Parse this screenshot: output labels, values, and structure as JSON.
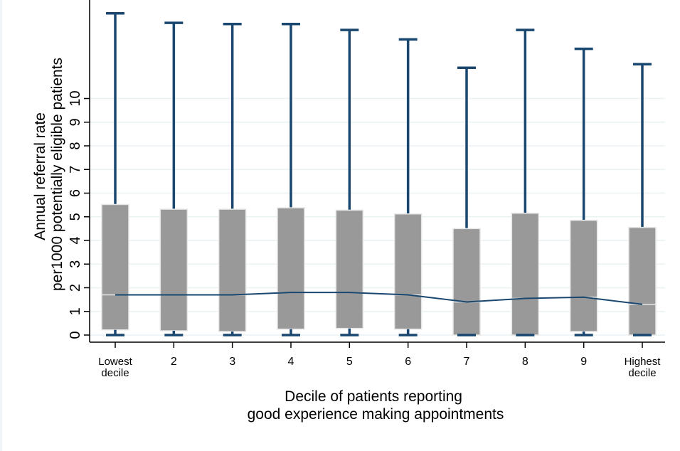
{
  "chart_data": {
    "type": "box",
    "categories": [
      "Lowest decile",
      "2",
      "3",
      "4",
      "5",
      "6",
      "7",
      "8",
      "9",
      "Highest decile"
    ],
    "category_lines": [
      [
        "Lowest",
        "decile"
      ],
      [
        "2"
      ],
      [
        "3"
      ],
      [
        "4"
      ],
      [
        "5"
      ],
      [
        "6"
      ],
      [
        "7"
      ],
      [
        "8"
      ],
      [
        "9"
      ],
      [
        "Highest",
        "decile"
      ]
    ],
    "boxes": [
      {
        "min": 0.0,
        "q1": 0.22,
        "median": 1.7,
        "q3": 5.52,
        "whisker_high": 13.6
      },
      {
        "min": 0.0,
        "q1": 0.18,
        "median": 1.7,
        "q3": 5.32,
        "whisker_high": 13.2
      },
      {
        "min": 0.0,
        "q1": 0.15,
        "median": 1.7,
        "q3": 5.32,
        "whisker_high": 13.15
      },
      {
        "min": 0.0,
        "q1": 0.25,
        "median": 1.8,
        "q3": 5.38,
        "whisker_high": 13.15
      },
      {
        "min": 0.0,
        "q1": 0.28,
        "median": 1.8,
        "q3": 5.28,
        "whisker_high": 12.9
      },
      {
        "min": 0.0,
        "q1": 0.25,
        "median": 1.7,
        "q3": 5.12,
        "whisker_high": 12.5
      },
      {
        "min": 0.0,
        "q1": 0.0,
        "median": 1.4,
        "q3": 4.5,
        "whisker_high": 11.3
      },
      {
        "min": 0.0,
        "q1": 0.0,
        "median": 1.55,
        "q3": 5.15,
        "whisker_high": 12.9
      },
      {
        "min": 0.0,
        "q1": 0.15,
        "median": 1.6,
        "q3": 4.85,
        "whisker_high": 12.1
      },
      {
        "min": 0.0,
        "q1": 0.0,
        "median": 1.3,
        "q3": 4.55,
        "whisker_high": 11.45
      }
    ],
    "median_line": [
      1.7,
      1.7,
      1.7,
      1.8,
      1.8,
      1.7,
      1.4,
      1.55,
      1.6,
      1.3
    ],
    "yticks": [
      0,
      1,
      2,
      3,
      4,
      5,
      6,
      7,
      8,
      9,
      10
    ],
    "ylim": [
      -0.3,
      13.8
    ],
    "grid": true,
    "ylabel_lines": [
      "Annual referral rate",
      "per1000 potentially eligible patients"
    ],
    "xlabel_lines": [
      "Decile of patients reporting",
      "good experience making appointments"
    ],
    "colors": {
      "box_fill": "#999999",
      "box_outline": "#e6e6e6",
      "whisker": "#1a476f",
      "median_line": "#1a476f",
      "grid": "#eaf2f3",
      "axis": "#000000"
    }
  }
}
